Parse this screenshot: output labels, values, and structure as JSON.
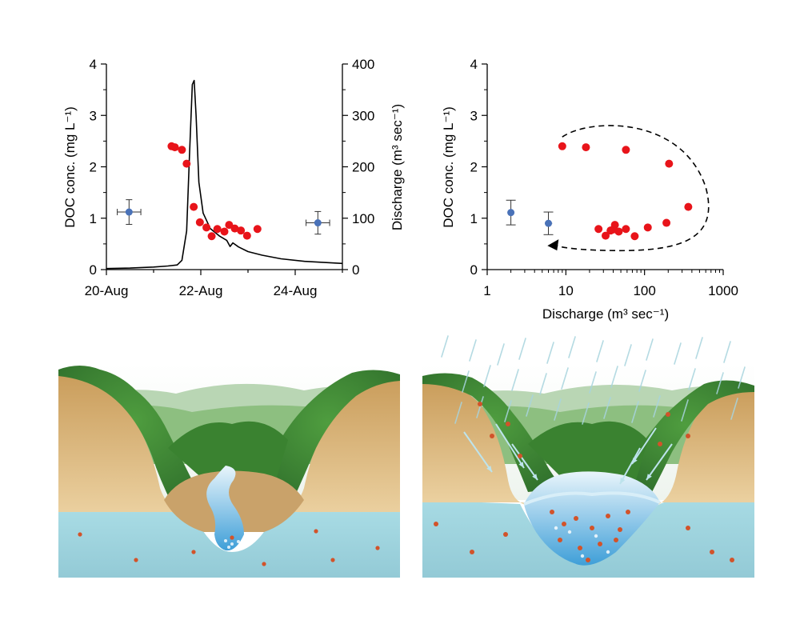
{
  "colors": {
    "doc_point": "#e8141a",
    "baseflow_point": "#4a72b8",
    "discharge_line": "#000000",
    "groundwater": "#9fd2dc",
    "soil": "#d9b27a",
    "forest": "#3e8a36",
    "stream": "#4aa6dc",
    "rain": "#a8d4de",
    "particle": "#d2532a"
  },
  "chart_data": [
    {
      "type": "scatter+line",
      "ylabel": "DOC conc. (mg L⁻¹)",
      "y2label": "Discharge (m³ sec⁻¹)",
      "xlabel": "",
      "ylim": [
        0,
        4
      ],
      "y2lim": [
        0,
        400
      ],
      "xlim": [
        0,
        5
      ],
      "xtick_labels": [
        {
          "x": 0,
          "label": "20-Aug"
        },
        {
          "x": 2,
          "label": "22-Aug"
        },
        {
          "x": 4,
          "label": "24-Aug"
        }
      ],
      "yticks": [
        0,
        1,
        2,
        3,
        4
      ],
      "y2ticks": [
        0,
        100,
        200,
        300,
        400
      ],
      "baseflow_points": [
        {
          "x": 0.48,
          "y": 1.12,
          "xerr": 0.25,
          "yerr": 0.24
        },
        {
          "x": 4.48,
          "y": 0.91,
          "xerr": 0.25,
          "yerr": 0.22
        }
      ],
      "doc_points": [
        {
          "x": 1.38,
          "y": 2.4
        },
        {
          "x": 1.45,
          "y": 2.38
        },
        {
          "x": 1.6,
          "y": 2.33
        },
        {
          "x": 1.7,
          "y": 2.06
        },
        {
          "x": 1.85,
          "y": 1.22
        },
        {
          "x": 1.98,
          "y": 0.92
        },
        {
          "x": 2.12,
          "y": 0.82
        },
        {
          "x": 2.23,
          "y": 0.65
        },
        {
          "x": 2.35,
          "y": 0.79
        },
        {
          "x": 2.5,
          "y": 0.74
        },
        {
          "x": 2.6,
          "y": 0.87
        },
        {
          "x": 2.72,
          "y": 0.8
        },
        {
          "x": 2.85,
          "y": 0.76
        },
        {
          "x": 2.98,
          "y": 0.66
        },
        {
          "x": 3.2,
          "y": 0.79
        }
      ],
      "discharge_line": [
        [
          0,
          2
        ],
        [
          0.5,
          3
        ],
        [
          1.0,
          5
        ],
        [
          1.3,
          7
        ],
        [
          1.5,
          9
        ],
        [
          1.6,
          18
        ],
        [
          1.7,
          75
        ],
        [
          1.76,
          220
        ],
        [
          1.82,
          360
        ],
        [
          1.86,
          368
        ],
        [
          1.9,
          300
        ],
        [
          1.96,
          170
        ],
        [
          2.05,
          110
        ],
        [
          2.2,
          80
        ],
        [
          2.4,
          65
        ],
        [
          2.55,
          57
        ],
        [
          2.62,
          45
        ],
        [
          2.68,
          52
        ],
        [
          2.8,
          44
        ],
        [
          3.0,
          35
        ],
        [
          3.3,
          28
        ],
        [
          3.7,
          21
        ],
        [
          4.2,
          16
        ],
        [
          5.0,
          12
        ]
      ]
    },
    {
      "type": "scatter",
      "xscale": "log",
      "xlabel": "Discharge (m³ sec⁻¹)",
      "ylabel": "DOC conc. (mg L⁻¹)",
      "xlim": [
        1,
        1000
      ],
      "ylim": [
        0,
        4
      ],
      "xticks": [
        1,
        10,
        100,
        1000
      ],
      "xtick_labels": [
        "1",
        "10",
        "100",
        "1000"
      ],
      "yticks": [
        0,
        1,
        2,
        3,
        4
      ],
      "baseflow_points": [
        {
          "x": 2.0,
          "y": 1.11,
          "xlo": 1.85,
          "xhi": 2.2,
          "yerr": 0.24
        },
        {
          "x": 6.0,
          "y": 0.9,
          "xlo": 5.4,
          "xhi": 6.7,
          "yerr": 0.22
        }
      ],
      "doc_points": [
        {
          "x": 9,
          "y": 2.4
        },
        {
          "x": 18,
          "y": 2.38
        },
        {
          "x": 58,
          "y": 2.33
        },
        {
          "x": 205,
          "y": 2.06
        },
        {
          "x": 360,
          "y": 1.22
        },
        {
          "x": 190,
          "y": 0.91
        },
        {
          "x": 110,
          "y": 0.82
        },
        {
          "x": 75,
          "y": 0.65
        },
        {
          "x": 58,
          "y": 0.79
        },
        {
          "x": 47,
          "y": 0.74
        },
        {
          "x": 42,
          "y": 0.87
        },
        {
          "x": 40,
          "y": 0.78
        },
        {
          "x": 37,
          "y": 0.76
        },
        {
          "x": 32,
          "y": 0.66
        },
        {
          "x": 26,
          "y": 0.79
        }
      ],
      "hysteresis_loop": "clockwise",
      "yticks_shown": true
    }
  ],
  "illustrations": [
    {
      "name": "baseflow",
      "condition": "dry"
    },
    {
      "name": "stormflow",
      "condition": "rain"
    }
  ]
}
